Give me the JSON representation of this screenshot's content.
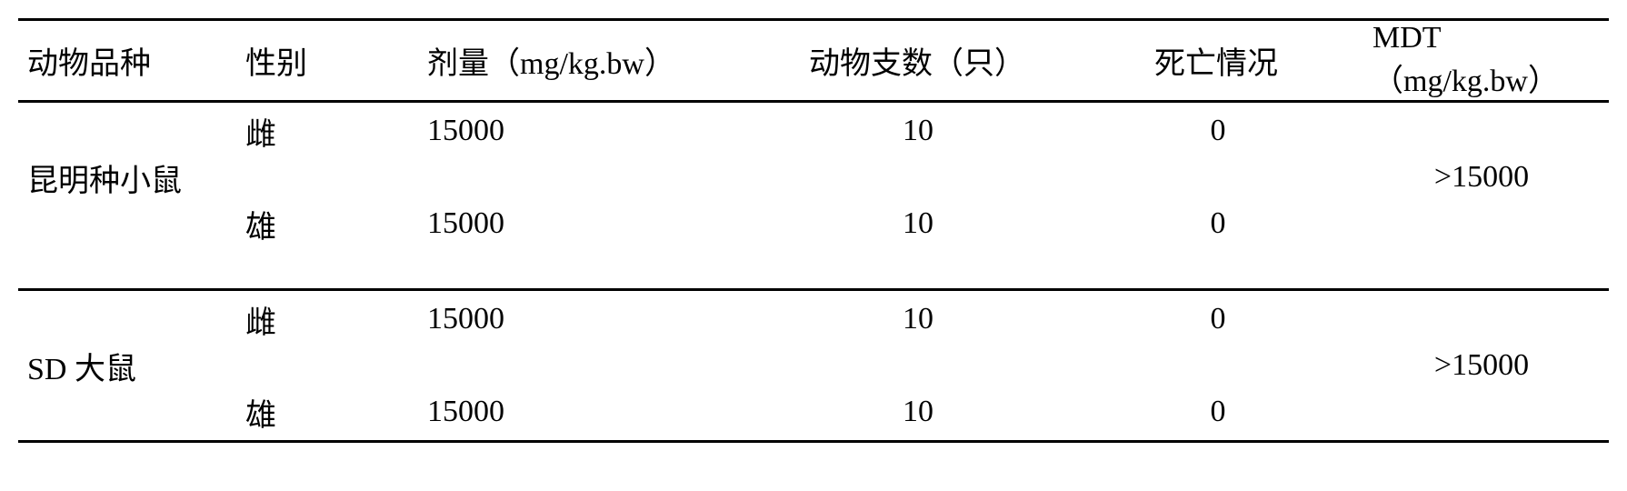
{
  "table": {
    "columns": {
      "species": "动物品种",
      "sex": "性别",
      "dose": "剂量（mg/kg.bw）",
      "count": "动物支数（只）",
      "death": "死亡情况",
      "mdt": "MDT（mg/kg.bw）"
    },
    "groups": [
      {
        "species": "昆明种小鼠",
        "mdt": ">15000",
        "rows": [
          {
            "sex": "雌",
            "dose": "15000",
            "count": "10",
            "death": "0"
          },
          {
            "sex": "雄",
            "dose": "15000",
            "count": "10",
            "death": "0"
          }
        ]
      },
      {
        "species": "SD 大鼠",
        "mdt": ">15000",
        "rows": [
          {
            "sex": "雌",
            "dose": "15000",
            "count": "10",
            "death": "0"
          },
          {
            "sex": "雄",
            "dose": "15000",
            "count": "10",
            "death": "0"
          }
        ]
      }
    ],
    "style": {
      "font_size": 34,
      "border_color": "#000000",
      "border_width": 3,
      "background": "#ffffff",
      "text_color": "#000000"
    }
  }
}
